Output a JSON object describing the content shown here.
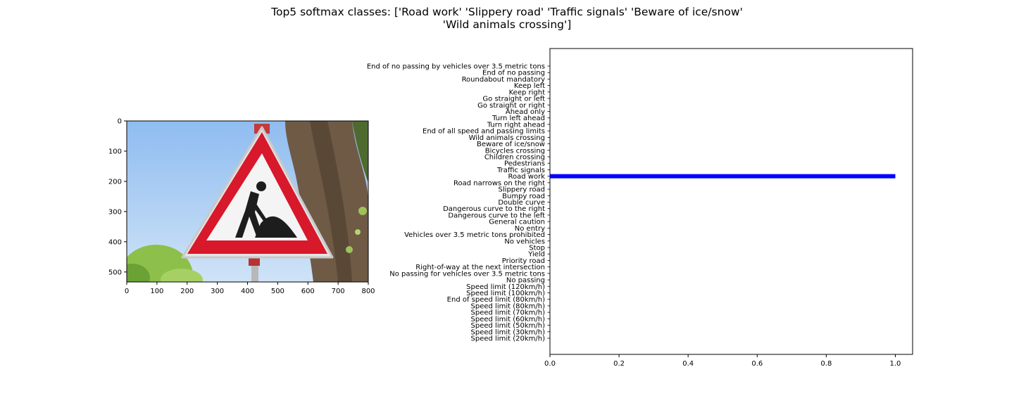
{
  "figure": {
    "title_lines": [
      "Top5 softmax classes: ['Road work' 'Slippery road' 'Traffic signals' 'Beware of ice/snow'",
      "'Wild animals crossing']"
    ]
  },
  "image_panel": {
    "xticks": [
      0,
      100,
      200,
      300,
      400,
      500,
      600,
      700,
      800
    ],
    "yticks": [
      0,
      100,
      200,
      300,
      400,
      500
    ],
    "xlim": [
      0,
      800
    ],
    "ylim": [
      0,
      533
    ],
    "colors": {
      "sky": "#a9cdf2",
      "sign_red": "#d8182b",
      "sign_white": "#f4f4f4",
      "symbol": "#1d1d1d",
      "trunk": "#6f5a46",
      "foliage": "#8cc04a"
    }
  },
  "chart_data": {
    "type": "bar",
    "orientation": "horizontal",
    "categories": [
      "Speed limit (20km/h)",
      "Speed limit (30km/h)",
      "Speed limit (50km/h)",
      "Speed limit (60km/h)",
      "Speed limit (70km/h)",
      "Speed limit (80km/h)",
      "End of speed limit (80km/h)",
      "Speed limit (100km/h)",
      "Speed limit (120km/h)",
      "No passing",
      "No passing for vehicles over 3.5 metric tons",
      "Right-of-way at the next intersection",
      "Priority road",
      "Yield",
      "Stop",
      "No vehicles",
      "Vehicles over 3.5 metric tons prohibited",
      "No entry",
      "General caution",
      "Dangerous curve to the left",
      "Dangerous curve to the right",
      "Double curve",
      "Bumpy road",
      "Slippery road",
      "Road narrows on the right",
      "Road work",
      "Traffic signals",
      "Pedestrians",
      "Children crossing",
      "Bicycles crossing",
      "Beware of ice/snow",
      "Wild animals crossing",
      "End of all speed and passing limits",
      "Turn right ahead",
      "Turn left ahead",
      "Ahead only",
      "Go straight or right",
      "Go straight or left",
      "Keep right",
      "Keep left",
      "Roundabout mandatory",
      "End of no passing",
      "End of no passing by vehicles over 3.5 metric tons"
    ],
    "values": [
      0,
      0,
      0,
      0,
      0,
      0,
      0,
      0,
      0,
      0,
      0,
      0,
      0,
      0,
      0,
      0,
      0,
      0,
      0,
      0,
      0,
      0,
      0,
      0,
      0,
      1.0,
      0,
      0,
      0,
      0,
      0,
      0,
      0,
      0,
      0,
      0,
      0,
      0,
      0,
      0,
      0,
      0,
      0
    ],
    "xticks": [
      0.0,
      0.2,
      0.4,
      0.6,
      0.8,
      1.0
    ],
    "xlim": [
      0,
      1.05
    ],
    "bar_color": "#0000ff",
    "grid": false
  }
}
